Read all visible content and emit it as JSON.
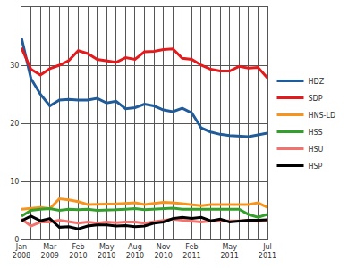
{
  "chart_data": {
    "type": "line",
    "categories": [
      "Jan 2008",
      null,
      null,
      "Mar 2009",
      null,
      null,
      "Feb 2010",
      null,
      null,
      "May 2010",
      null,
      null,
      "Aug 2010",
      null,
      null,
      "Nov 2010",
      null,
      null,
      "Feb 2011",
      null,
      null,
      null,
      "May 2011",
      null,
      null,
      null,
      "Jul 2011"
    ],
    "series": [
      {
        "name": "HDZ",
        "color": "#1f5c99",
        "values": [
          34.7,
          27.7,
          25,
          23,
          24,
          24.1,
          24,
          24,
          24.3,
          23.5,
          23.8,
          22.5,
          22.7,
          23.3,
          23,
          22.3,
          22,
          22.6,
          21.8,
          19.2,
          18.5,
          18.1,
          17.9,
          17.8,
          17.7,
          18,
          18.3
        ]
      },
      {
        "name": "SDP",
        "color": "#e41a1c",
        "values": [
          33,
          29.3,
          28.3,
          29.4,
          30,
          30.8,
          32.5,
          32,
          31,
          30.8,
          30.5,
          31.3,
          31,
          32.3,
          32.4,
          32.7,
          32.8,
          31.2,
          31,
          30,
          29.3,
          29,
          29,
          29.8,
          29.5,
          29.6,
          27.8
        ]
      },
      {
        "name": "HNS-LD",
        "color": "#f7941d",
        "values": [
          5.2,
          5.3,
          5.5,
          5.3,
          7,
          6.8,
          6.5,
          6,
          6,
          6.1,
          6.1,
          6.2,
          6.3,
          6,
          6.2,
          6.4,
          6.3,
          6.1,
          6,
          5.8,
          6,
          6,
          5.9,
          6,
          6,
          6.3,
          5.5
        ]
      },
      {
        "name": "HSS",
        "color": "#33a02c",
        "values": [
          4,
          5,
          5.2,
          5.3,
          5,
          5.2,
          5.1,
          5.2,
          5,
          5,
          5.1,
          5.2,
          5.3,
          5.1,
          5.2,
          5.3,
          5.4,
          5.2,
          5.2,
          5.3,
          5.3,
          5.3,
          5.2,
          5.2,
          4.3,
          3.8,
          4.3
        ]
      },
      {
        "name": "HSU",
        "color": "#f4726e",
        "values": [
          3.5,
          2.3,
          3,
          3,
          3.3,
          3.1,
          2.8,
          3,
          2.8,
          3,
          2.9,
          3,
          3,
          2.8,
          3,
          3.2,
          3.5,
          3.3,
          3.2,
          3,
          3.2,
          3.2,
          3.1,
          3.2,
          3.3,
          3.2,
          3.3
        ]
      },
      {
        "name": "HSP",
        "color": "#000000",
        "values": [
          3.2,
          4,
          3.2,
          3.6,
          2.1,
          2.2,
          1.8,
          2.3,
          2.5,
          2.5,
          2.3,
          2.4,
          2.2,
          2.3,
          2.8,
          3,
          3.6,
          3.8,
          3.6,
          3.8,
          3.2,
          3.5,
          3,
          3.2,
          3.3,
          3.3,
          3.4
        ]
      }
    ],
    "ylim": [
      0,
      40
    ],
    "yticks": [
      0,
      10,
      20,
      30
    ],
    "grid": true,
    "legend": "right"
  }
}
